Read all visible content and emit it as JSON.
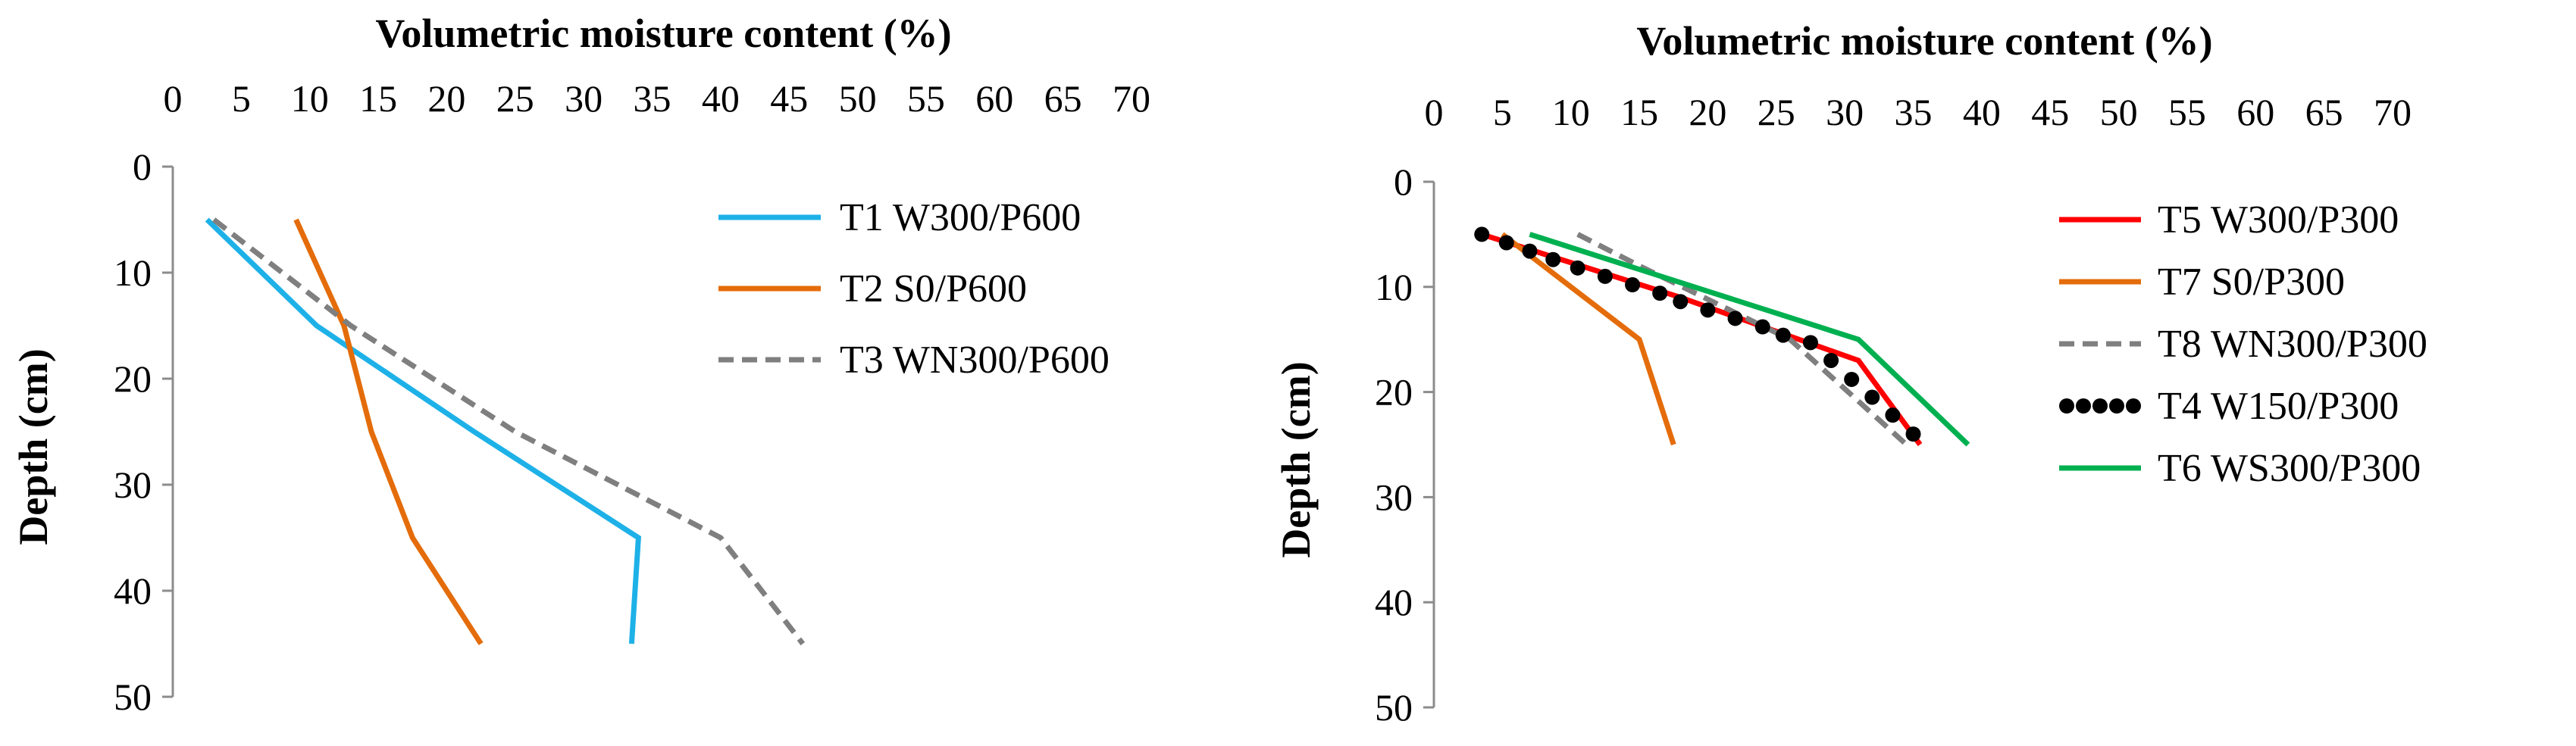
{
  "chart_data": [
    {
      "type": "line",
      "xlabel": "Volumetric moisture content (%)",
      "ylabel": "Depth (cm)",
      "xlim": [
        0,
        70
      ],
      "ylim": [
        0,
        50
      ],
      "xticks": [
        0,
        5,
        10,
        15,
        20,
        25,
        30,
        35,
        40,
        45,
        50,
        55,
        60,
        65,
        70
      ],
      "yticks": [
        0,
        10,
        20,
        30,
        40,
        50
      ],
      "y_inverted": true,
      "legend_position": "top-right",
      "series": [
        {
          "name": "T1 W300/P600",
          "color": "#1eb1e8",
          "dash": "solid",
          "x": [
            2.5,
            10.5,
            22,
            34,
            33.5
          ],
          "y": [
            5,
            15,
            25,
            35,
            45
          ]
        },
        {
          "name": "T2 S0/P600",
          "color": "#e46c0a",
          "dash": "solid",
          "x": [
            9,
            12.5,
            14.5,
            17.5,
            22.5
          ],
          "y": [
            5,
            15,
            25,
            35,
            45
          ]
        },
        {
          "name": "T3 WN300/P600",
          "color": "#7f7f7f",
          "dash": "dashed",
          "x": [
            3,
            13,
            25,
            40,
            46
          ],
          "y": [
            5,
            15,
            25,
            35,
            45
          ]
        }
      ]
    },
    {
      "type": "line",
      "xlabel": "Volumetric moisture content (%)",
      "ylabel": "Depth (cm)",
      "xlim": [
        0,
        70
      ],
      "ylim": [
        0,
        50
      ],
      "xticks": [
        0,
        5,
        10,
        15,
        20,
        25,
        30,
        35,
        40,
        45,
        50,
        55,
        60,
        65,
        70
      ],
      "yticks": [
        0,
        10,
        20,
        30,
        40,
        50
      ],
      "y_inverted": true,
      "legend_position": "top-right",
      "series": [
        {
          "name": "T5 W300/P300",
          "color": "#ff0000",
          "dash": "solid",
          "x": [
            3.5,
            18,
            31,
            35.5
          ],
          "y": [
            5,
            11,
            17,
            25
          ]
        },
        {
          "name": "T7 S0/P300",
          "color": "#e46c0a",
          "dash": "solid",
          "x": [
            5,
            15,
            17.5
          ],
          "y": [
            5,
            15,
            25
          ]
        },
        {
          "name": "T8 WN300/P300",
          "color": "#7f7f7f",
          "dash": "dashed",
          "x": [
            10.5,
            15,
            26,
            34.5
          ],
          "y": [
            5,
            8,
            15,
            25
          ]
        },
        {
          "name": "T4 W150/P300",
          "color": "#000000",
          "dash": "dotted",
          "x": [
            3.5,
            5.3,
            7,
            8.7,
            10.5,
            12.5,
            14.5,
            16.5,
            18,
            20,
            22,
            24,
            25.5,
            27.5,
            29,
            30.5,
            32,
            33.5,
            35
          ],
          "y": [
            5,
            5.8,
            6.6,
            7.4,
            8.2,
            9,
            9.8,
            10.6,
            11.4,
            12.2,
            13,
            13.8,
            14.6,
            15.3,
            17,
            18.8,
            20.5,
            22.2,
            24
          ]
        },
        {
          "name": "T6 WS300/P300",
          "color": "#00b050",
          "dash": "solid",
          "x": [
            7,
            31,
            39
          ],
          "y": [
            5,
            15,
            25
          ]
        }
      ]
    }
  ]
}
